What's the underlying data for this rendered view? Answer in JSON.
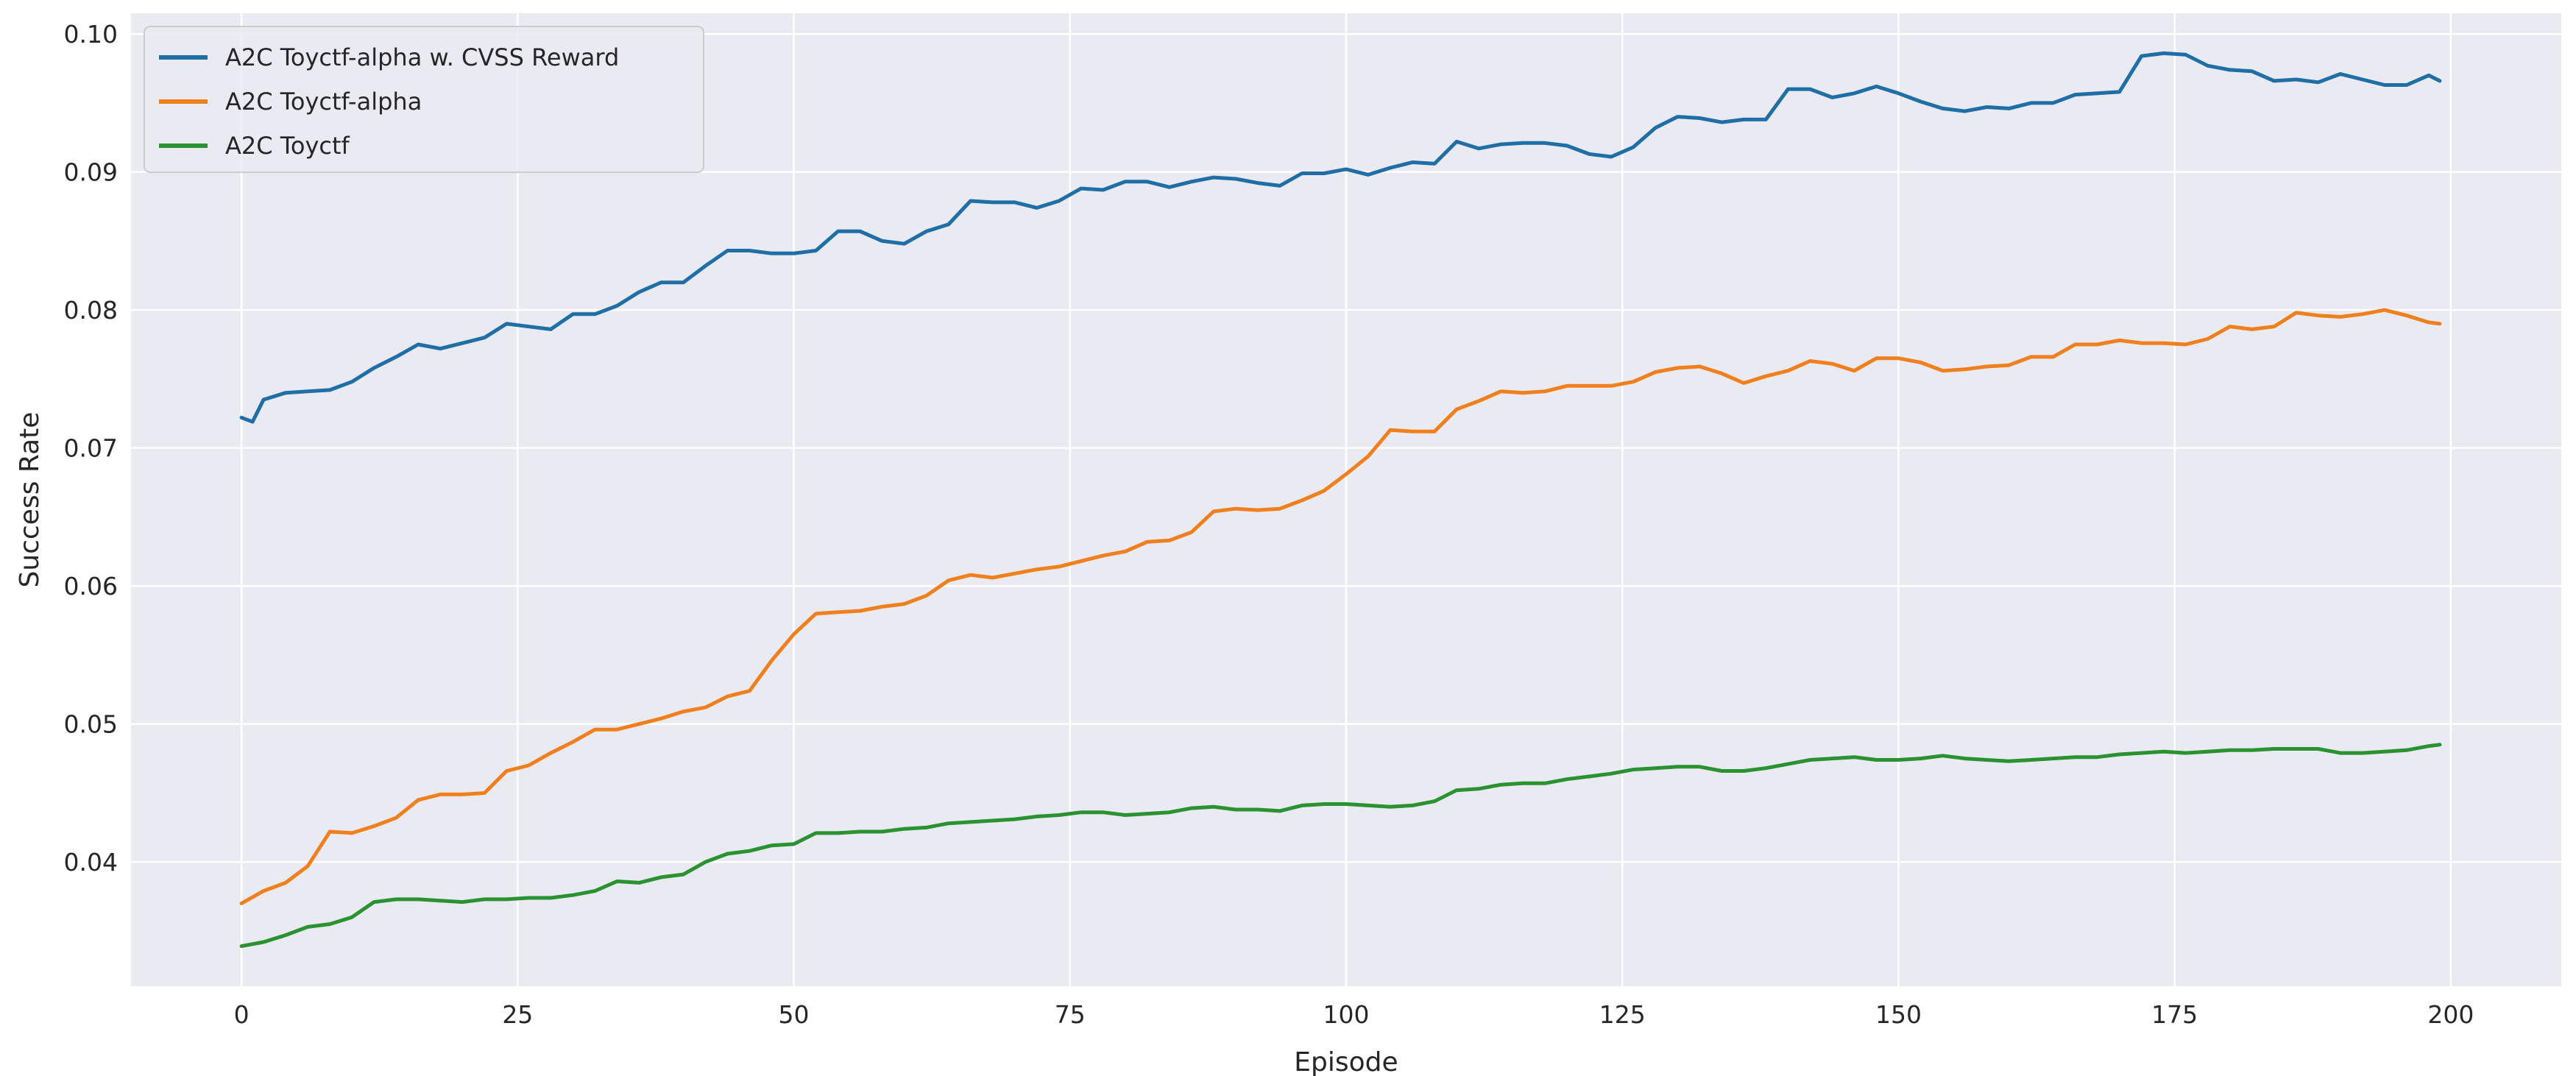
{
  "chart_data": {
    "type": "line",
    "title": "",
    "xlabel": "Episode",
    "ylabel": "Success Rate",
    "xlim": [
      -10,
      210
    ],
    "ylim": [
      0.031,
      0.1015
    ],
    "xticks": [
      0,
      25,
      50,
      75,
      100,
      125,
      150,
      175,
      200
    ],
    "yticks": [
      0.04,
      0.05,
      0.06,
      0.07,
      0.08,
      0.09,
      0.1
    ],
    "ytick_labels": [
      "0.04",
      "0.05",
      "0.06",
      "0.07",
      "0.08",
      "0.09",
      "0.10"
    ],
    "grid": true,
    "legend_position": "top-left",
    "series": [
      {
        "name": "A2C Toyctf-alpha w. CVSS Reward",
        "color": "#1f6ea6",
        "points": [
          [
            0,
            0.0722
          ],
          [
            1,
            0.0719
          ],
          [
            2,
            0.0735
          ],
          [
            4,
            0.074
          ],
          [
            6,
            0.0741
          ],
          [
            8,
            0.0742
          ],
          [
            10,
            0.0748
          ],
          [
            12,
            0.0758
          ],
          [
            14,
            0.0766
          ],
          [
            16,
            0.0775
          ],
          [
            18,
            0.0772
          ],
          [
            20,
            0.0776
          ],
          [
            22,
            0.078
          ],
          [
            24,
            0.079
          ],
          [
            26,
            0.0788
          ],
          [
            28,
            0.0786
          ],
          [
            30,
            0.0797
          ],
          [
            32,
            0.0797
          ],
          [
            34,
            0.0803
          ],
          [
            36,
            0.0813
          ],
          [
            38,
            0.082
          ],
          [
            40,
            0.082
          ],
          [
            42,
            0.0832
          ],
          [
            44,
            0.0843
          ],
          [
            46,
            0.0843
          ],
          [
            48,
            0.0841
          ],
          [
            50,
            0.0841
          ],
          [
            52,
            0.0843
          ],
          [
            54,
            0.0857
          ],
          [
            56,
            0.0857
          ],
          [
            58,
            0.085
          ],
          [
            60,
            0.0848
          ],
          [
            62,
            0.0857
          ],
          [
            64,
            0.0862
          ],
          [
            66,
            0.0879
          ],
          [
            68,
            0.0878
          ],
          [
            70,
            0.0878
          ],
          [
            72,
            0.0874
          ],
          [
            74,
            0.0879
          ],
          [
            76,
            0.0888
          ],
          [
            78,
            0.0887
          ],
          [
            80,
            0.0893
          ],
          [
            82,
            0.0893
          ],
          [
            84,
            0.0889
          ],
          [
            86,
            0.0893
          ],
          [
            88,
            0.0896
          ],
          [
            90,
            0.0895
          ],
          [
            92,
            0.0892
          ],
          [
            94,
            0.089
          ],
          [
            96,
            0.0899
          ],
          [
            98,
            0.0899
          ],
          [
            100,
            0.0902
          ],
          [
            102,
            0.0898
          ],
          [
            104,
            0.0903
          ],
          [
            106,
            0.0907
          ],
          [
            108,
            0.0906
          ],
          [
            110,
            0.0922
          ],
          [
            112,
            0.0917
          ],
          [
            114,
            0.092
          ],
          [
            116,
            0.0921
          ],
          [
            118,
            0.0921
          ],
          [
            120,
            0.0919
          ],
          [
            122,
            0.0913
          ],
          [
            124,
            0.0911
          ],
          [
            126,
            0.0918
          ],
          [
            128,
            0.0932
          ],
          [
            130,
            0.094
          ],
          [
            132,
            0.0939
          ],
          [
            134,
            0.0936
          ],
          [
            136,
            0.0938
          ],
          [
            138,
            0.0938
          ],
          [
            140,
            0.096
          ],
          [
            142,
            0.096
          ],
          [
            144,
            0.0954
          ],
          [
            146,
            0.0957
          ],
          [
            148,
            0.0962
          ],
          [
            150,
            0.0957
          ],
          [
            152,
            0.0951
          ],
          [
            154,
            0.0946
          ],
          [
            156,
            0.0944
          ],
          [
            158,
            0.0947
          ],
          [
            160,
            0.0946
          ],
          [
            162,
            0.095
          ],
          [
            164,
            0.095
          ],
          [
            166,
            0.0956
          ],
          [
            168,
            0.0957
          ],
          [
            170,
            0.0958
          ],
          [
            172,
            0.0984
          ],
          [
            174,
            0.0986
          ],
          [
            176,
            0.0985
          ],
          [
            178,
            0.0977
          ],
          [
            180,
            0.0974
          ],
          [
            182,
            0.0973
          ],
          [
            184,
            0.0966
          ],
          [
            186,
            0.0967
          ],
          [
            188,
            0.0965
          ],
          [
            190,
            0.0971
          ],
          [
            192,
            0.0967
          ],
          [
            194,
            0.0963
          ],
          [
            196,
            0.0963
          ],
          [
            198,
            0.097
          ],
          [
            199,
            0.0966
          ]
        ]
      },
      {
        "name": "A2C Toyctf-alpha",
        "color": "#f07f1e",
        "points": [
          [
            0,
            0.037
          ],
          [
            2,
            0.0379
          ],
          [
            4,
            0.0385
          ],
          [
            6,
            0.0397
          ],
          [
            8,
            0.0422
          ],
          [
            10,
            0.0421
          ],
          [
            12,
            0.0426
          ],
          [
            14,
            0.0432
          ],
          [
            16,
            0.0445
          ],
          [
            18,
            0.0449
          ],
          [
            20,
            0.0449
          ],
          [
            22,
            0.045
          ],
          [
            24,
            0.0466
          ],
          [
            26,
            0.047
          ],
          [
            28,
            0.0479
          ],
          [
            30,
            0.0487
          ],
          [
            32,
            0.0496
          ],
          [
            34,
            0.0496
          ],
          [
            36,
            0.05
          ],
          [
            38,
            0.0504
          ],
          [
            40,
            0.0509
          ],
          [
            42,
            0.0512
          ],
          [
            44,
            0.052
          ],
          [
            46,
            0.0524
          ],
          [
            48,
            0.0546
          ],
          [
            50,
            0.0565
          ],
          [
            52,
            0.058
          ],
          [
            54,
            0.0581
          ],
          [
            56,
            0.0582
          ],
          [
            58,
            0.0585
          ],
          [
            60,
            0.0587
          ],
          [
            62,
            0.0593
          ],
          [
            64,
            0.0604
          ],
          [
            66,
            0.0608
          ],
          [
            68,
            0.0606
          ],
          [
            70,
            0.0609
          ],
          [
            72,
            0.0612
          ],
          [
            74,
            0.0614
          ],
          [
            76,
            0.0618
          ],
          [
            78,
            0.0622
          ],
          [
            80,
            0.0625
          ],
          [
            82,
            0.0632
          ],
          [
            84,
            0.0633
          ],
          [
            86,
            0.0639
          ],
          [
            88,
            0.0654
          ],
          [
            90,
            0.0656
          ],
          [
            92,
            0.0655
          ],
          [
            94,
            0.0656
          ],
          [
            96,
            0.0662
          ],
          [
            98,
            0.0669
          ],
          [
            100,
            0.0681
          ],
          [
            102,
            0.0694
          ],
          [
            104,
            0.0713
          ],
          [
            106,
            0.0712
          ],
          [
            108,
            0.0712
          ],
          [
            110,
            0.0728
          ],
          [
            112,
            0.0734
          ],
          [
            114,
            0.0741
          ],
          [
            116,
            0.074
          ],
          [
            118,
            0.0741
          ],
          [
            120,
            0.0745
          ],
          [
            122,
            0.0745
          ],
          [
            124,
            0.0745
          ],
          [
            126,
            0.0748
          ],
          [
            128,
            0.0755
          ],
          [
            130,
            0.0758
          ],
          [
            132,
            0.0759
          ],
          [
            134,
            0.0754
          ],
          [
            136,
            0.0747
          ],
          [
            138,
            0.0752
          ],
          [
            140,
            0.0756
          ],
          [
            142,
            0.0763
          ],
          [
            144,
            0.0761
          ],
          [
            146,
            0.0756
          ],
          [
            148,
            0.0765
          ],
          [
            150,
            0.0765
          ],
          [
            152,
            0.0762
          ],
          [
            154,
            0.0756
          ],
          [
            156,
            0.0757
          ],
          [
            158,
            0.0759
          ],
          [
            160,
            0.076
          ],
          [
            162,
            0.0766
          ],
          [
            164,
            0.0766
          ],
          [
            166,
            0.0775
          ],
          [
            168,
            0.0775
          ],
          [
            170,
            0.0778
          ],
          [
            172,
            0.0776
          ],
          [
            174,
            0.0776
          ],
          [
            176,
            0.0775
          ],
          [
            178,
            0.0779
          ],
          [
            180,
            0.0788
          ],
          [
            182,
            0.0786
          ],
          [
            184,
            0.0788
          ],
          [
            186,
            0.0798
          ],
          [
            188,
            0.0796
          ],
          [
            190,
            0.0795
          ],
          [
            192,
            0.0797
          ],
          [
            194,
            0.08
          ],
          [
            196,
            0.0796
          ],
          [
            198,
            0.0791
          ],
          [
            199,
            0.079
          ]
        ]
      },
      {
        "name": "A2C Toyctf",
        "color": "#2b9232",
        "points": [
          [
            0,
            0.0339
          ],
          [
            2,
            0.0342
          ],
          [
            4,
            0.0347
          ],
          [
            6,
            0.0353
          ],
          [
            8,
            0.0355
          ],
          [
            10,
            0.036
          ],
          [
            12,
            0.0371
          ],
          [
            14,
            0.0373
          ],
          [
            16,
            0.0373
          ],
          [
            18,
            0.0372
          ],
          [
            20,
            0.0371
          ],
          [
            22,
            0.0373
          ],
          [
            24,
            0.0373
          ],
          [
            26,
            0.0374
          ],
          [
            28,
            0.0374
          ],
          [
            30,
            0.0376
          ],
          [
            32,
            0.0379
          ],
          [
            34,
            0.0386
          ],
          [
            36,
            0.0385
          ],
          [
            38,
            0.0389
          ],
          [
            40,
            0.0391
          ],
          [
            42,
            0.04
          ],
          [
            44,
            0.0406
          ],
          [
            46,
            0.0408
          ],
          [
            48,
            0.0412
          ],
          [
            50,
            0.0413
          ],
          [
            52,
            0.0421
          ],
          [
            54,
            0.0421
          ],
          [
            56,
            0.0422
          ],
          [
            58,
            0.0422
          ],
          [
            60,
            0.0424
          ],
          [
            62,
            0.0425
          ],
          [
            64,
            0.0428
          ],
          [
            66,
            0.0429
          ],
          [
            68,
            0.043
          ],
          [
            70,
            0.0431
          ],
          [
            72,
            0.0433
          ],
          [
            74,
            0.0434
          ],
          [
            76,
            0.0436
          ],
          [
            78,
            0.0436
          ],
          [
            80,
            0.0434
          ],
          [
            82,
            0.0435
          ],
          [
            84,
            0.0436
          ],
          [
            86,
            0.0439
          ],
          [
            88,
            0.044
          ],
          [
            90,
            0.0438
          ],
          [
            92,
            0.0438
          ],
          [
            94,
            0.0437
          ],
          [
            96,
            0.0441
          ],
          [
            98,
            0.0442
          ],
          [
            100,
            0.0442
          ],
          [
            102,
            0.0441
          ],
          [
            104,
            0.044
          ],
          [
            106,
            0.0441
          ],
          [
            108,
            0.0444
          ],
          [
            110,
            0.0452
          ],
          [
            112,
            0.0453
          ],
          [
            114,
            0.0456
          ],
          [
            116,
            0.0457
          ],
          [
            118,
            0.0457
          ],
          [
            120,
            0.046
          ],
          [
            122,
            0.0462
          ],
          [
            124,
            0.0464
          ],
          [
            126,
            0.0467
          ],
          [
            128,
            0.0468
          ],
          [
            130,
            0.0469
          ],
          [
            132,
            0.0469
          ],
          [
            134,
            0.0466
          ],
          [
            136,
            0.0466
          ],
          [
            138,
            0.0468
          ],
          [
            140,
            0.0471
          ],
          [
            142,
            0.0474
          ],
          [
            144,
            0.0475
          ],
          [
            146,
            0.0476
          ],
          [
            148,
            0.0474
          ],
          [
            150,
            0.0474
          ],
          [
            152,
            0.0475
          ],
          [
            154,
            0.0477
          ],
          [
            156,
            0.0475
          ],
          [
            158,
            0.0474
          ],
          [
            160,
            0.0473
          ],
          [
            162,
            0.0474
          ],
          [
            164,
            0.0475
          ],
          [
            166,
            0.0476
          ],
          [
            168,
            0.0476
          ],
          [
            170,
            0.0478
          ],
          [
            172,
            0.0479
          ],
          [
            174,
            0.048
          ],
          [
            176,
            0.0479
          ],
          [
            178,
            0.048
          ],
          [
            180,
            0.0481
          ],
          [
            182,
            0.0481
          ],
          [
            184,
            0.0482
          ],
          [
            186,
            0.0482
          ],
          [
            188,
            0.0482
          ],
          [
            190,
            0.0479
          ],
          [
            192,
            0.0479
          ],
          [
            194,
            0.048
          ],
          [
            196,
            0.0481
          ],
          [
            198,
            0.0484
          ],
          [
            199,
            0.0485
          ]
        ]
      }
    ]
  }
}
